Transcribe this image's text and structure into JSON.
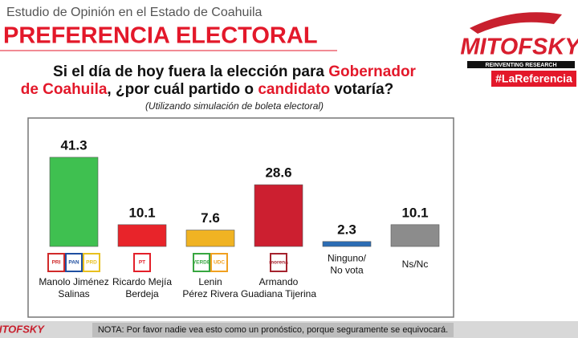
{
  "header": {
    "study": "Estudio de Opinión en el Estado de Coahuila",
    "title": "PREFERENCIA ELECTORAL"
  },
  "question": {
    "lines": [
      [
        {
          "text": "Si el día de hoy fuera la elección para ",
          "color": "#111111"
        },
        {
          "text": "Gobernador",
          "color": "#e3182a"
        }
      ],
      [
        {
          "text": "de Coahuila",
          "color": "#e3182a"
        },
        {
          "text": ", ¿por cuál partido o ",
          "color": "#111111"
        },
        {
          "text": "candidato",
          "color": "#e3182a"
        },
        {
          "text": " votaría?",
          "color": "#111111"
        }
      ]
    ],
    "subtitle": "(Utilizando simulación de boleta electoral)"
  },
  "logo": {
    "name": "MITOFSKY",
    "tagline": "REINVENTING RESEARCH",
    "hashtag": "#LaReferencia"
  },
  "chart_data": {
    "type": "bar",
    "categories": [
      [
        "Manolo Jiménez",
        "Salinas"
      ],
      [
        "Ricardo Mejía",
        "Berdeja"
      ],
      [
        "Lenin",
        "Pérez Rivera"
      ],
      [
        "Armando",
        "Guadiana Tijerina"
      ],
      [
        "Ninguno/",
        "No vota"
      ],
      [
        "Ns/Nc"
      ]
    ],
    "values": [
      41.3,
      10.1,
      7.6,
      28.6,
      2.3,
      10.1
    ],
    "colors": [
      "#3fc050",
      "#e8242a",
      "#f0b323",
      "#cc1f30",
      "#2c6db4",
      "#8c8c8c"
    ],
    "parties": [
      [
        {
          "name": "PRI",
          "color": "#d02a2a"
        },
        {
          "name": "PAN",
          "color": "#1f4fa0"
        },
        {
          "name": "PRD",
          "color": "#e8c020"
        }
      ],
      [
        {
          "name": "PT",
          "color": "#e3202a"
        }
      ],
      [
        {
          "name": "VERDE",
          "color": "#38a640"
        },
        {
          "name": "UDC",
          "color": "#f0a020"
        }
      ],
      [
        {
          "name": "morena",
          "color": "#a5232e"
        }
      ],
      [],
      []
    ]
  },
  "note": "NOTA: Por favor nadie vea esto como un pronóstico, porque seguramente se equivocará."
}
